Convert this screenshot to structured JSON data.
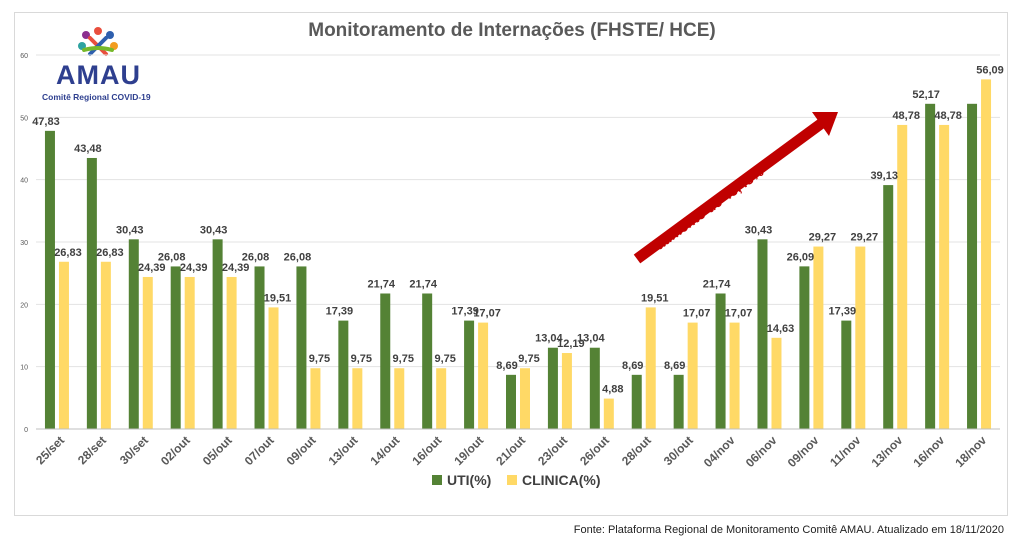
{
  "title": "Monitoramento de Internações (FHSTE/ HCE)",
  "logo": {
    "name": "AMAU",
    "subtitle": "Comitê Regional COVID-19"
  },
  "source": "Fonte: Plataforma Regional de Monitoramento Comitê AMAU. Atualizado em 18/11/2020",
  "annotation": "aumento de 43,48%",
  "colors": {
    "uti": "#548235",
    "clinica": "#ffd966",
    "arrow": "#c00000"
  },
  "chart_data": {
    "type": "bar",
    "categories": [
      "25/set",
      "28/set",
      "30/set",
      "02/out",
      "05/out",
      "07/out",
      "09/out",
      "13/out",
      "14/out",
      "16/out",
      "19/out",
      "21/out",
      "23/out",
      "26/out",
      "28/out",
      "30/out",
      "04/nov",
      "06/nov",
      "09/nov",
      "11/nov",
      "13/nov",
      "16/nov",
      "18/nov"
    ],
    "series": [
      {
        "name": "UTI(%)",
        "values": [
          47.83,
          43.48,
          30.43,
          26.08,
          30.43,
          26.08,
          26.08,
          17.39,
          21.74,
          21.74,
          17.39,
          8.69,
          13.04,
          13.04,
          8.69,
          8.69,
          21.74,
          30.43,
          26.09,
          17.39,
          39.13,
          52.17,
          52.17
        ]
      },
      {
        "name": "CLINICA(%)",
        "values": [
          26.83,
          26.83,
          24.39,
          24.39,
          24.39,
          19.51,
          9.75,
          9.75,
          9.75,
          9.75,
          17.07,
          9.75,
          12.19,
          4.88,
          19.51,
          17.07,
          17.07,
          14.63,
          29.27,
          29.27,
          48.78,
          48.78,
          56.09
        ]
      }
    ],
    "data_labels": {
      "uti": [
        "47,83",
        "43,48",
        "30,43",
        "26,08",
        "30,43",
        "26,08",
        "26,08",
        "17,39",
        "21,74",
        "21,74",
        "17,39",
        "8,69",
        "13,04",
        "13,04",
        "8,69",
        "8,69",
        "21,74",
        "30,43",
        "26,09",
        "17,39",
        "39,13",
        "52,17",
        ""
      ],
      "clinica": [
        "26,83",
        "26,83",
        "24,39",
        "24,39",
        "24,39",
        "19,51",
        "9,75",
        "9,75",
        "9,75",
        "9,75",
        "17,07",
        "9,75",
        "12,19",
        "4,88",
        "19,51",
        "17,07",
        "17,07",
        "14,63",
        "29,27",
        "29,27",
        "48,78",
        "48,78",
        "56,09"
      ]
    },
    "yticks": [
      "0",
      "10",
      "20",
      "30",
      "40",
      "50",
      "60"
    ],
    "ylim": [
      0,
      60
    ],
    "grid": true,
    "legend": "bottom"
  }
}
